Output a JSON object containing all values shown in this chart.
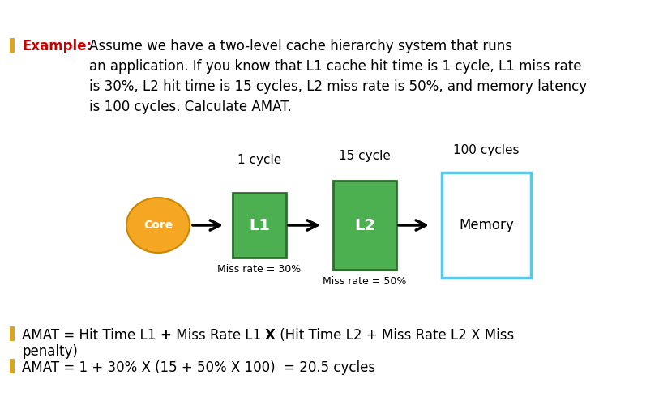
{
  "background_color": "#ffffff",
  "title_example_bold": "Example:",
  "title_example_color": "#cc0000",
  "title_rest": "Assume we have a two-level cache hierarchy system that runs\nan application. If you know that L1 cache hit time is 1 cycle, L1 miss rate\nis 30%, L2 hit time is 15 cycles, L2 miss rate is 50%, and memory latency\nis 100 cycles. Calculate AMAT.",
  "bullet_color": "#DAA520",
  "core_label": "Core",
  "core_color": "#F5A623",
  "l1_label": "L1",
  "l1_color": "#4CAF50",
  "l1_edge_color": "#2d6e2d",
  "l2_label": "L2",
  "l2_color": "#4CAF50",
  "l2_edge_color": "#2d6e2d",
  "memory_label": "Memory",
  "memory_border_color": "#5BC8E8",
  "l1_cycle_label": "1 cycle",
  "l2_cycle_label": "15 cycle",
  "mem_cycle_label": "100 cycles",
  "l1_miss_label": "Miss rate = 30%",
  "l2_miss_label": "Miss rate = 50%",
  "formula_line2": "penalty)",
  "formula_line3": "AMAT = 1 + 30% X (15 + 50% X 100)  = 20.5 cycles",
  "arrow_color": "#000000",
  "text_fontsize": 12,
  "diagram_fontsize": 11,
  "small_fontsize": 9,
  "label_fontsize": 10
}
